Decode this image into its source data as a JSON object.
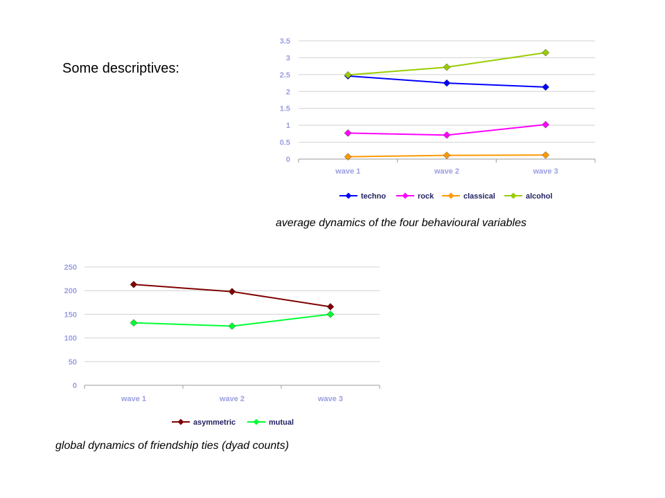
{
  "page": {
    "heading": "Some descriptives:",
    "caption_1": "average dynamics of the four behavioural variables",
    "caption_2": "global dynamics of friendship ties (dyad counts)"
  },
  "chart_data": [
    {
      "type": "line",
      "categories": [
        "wave 1",
        "wave 2",
        "wave 3"
      ],
      "ylim": [
        0,
        3.5
      ],
      "yticks": [
        0,
        0.5,
        1,
        1.5,
        2,
        2.5,
        3,
        3.5
      ],
      "ytick_labels": [
        "0",
        "0.5",
        "1",
        "1.5",
        "2",
        "2.5",
        "3",
        "3.5"
      ],
      "grid": true,
      "legend_position": "bottom",
      "series": [
        {
          "name": "techno",
          "values": [
            2.46,
            2.25,
            2.13
          ],
          "color": "#0000ff"
        },
        {
          "name": "rock",
          "values": [
            0.77,
            0.71,
            1.02
          ],
          "color": "#ff00ff"
        },
        {
          "name": "classical",
          "values": [
            0.07,
            0.11,
            0.12
          ],
          "color": "#ff9900"
        },
        {
          "name": "alcohol",
          "values": [
            2.49,
            2.72,
            3.15
          ],
          "color": "#99cc00"
        }
      ]
    },
    {
      "type": "line",
      "categories": [
        "wave 1",
        "wave 2",
        "wave 3"
      ],
      "ylim": [
        0,
        250
      ],
      "yticks": [
        0,
        50,
        100,
        150,
        200,
        250
      ],
      "ytick_labels": [
        "0",
        "50",
        "100",
        "150",
        "200",
        "250"
      ],
      "grid": true,
      "legend_position": "bottom",
      "series": [
        {
          "name": "asymmetric",
          "values": [
            213,
            198,
            166
          ],
          "color": "#800000"
        },
        {
          "name": "mutual",
          "values": [
            132,
            125,
            150
          ],
          "color": "#00ff33"
        }
      ]
    }
  ]
}
